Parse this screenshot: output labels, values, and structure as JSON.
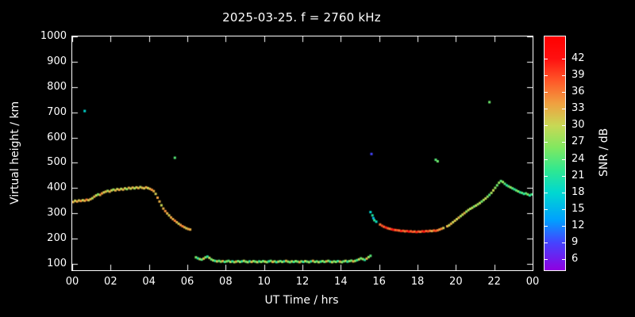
{
  "title": "2025-03-25. f = 2760 kHz",
  "chart_data": {
    "type": "scatter",
    "title": "2025-03-25. f = 2760 kHz",
    "xlabel": "UT Time / hrs",
    "ylabel": "Virtual height / km",
    "colorbar_label": "SNR / dB",
    "xlim": [
      0,
      24
    ],
    "ylim": [
      75,
      1000
    ],
    "grid": false,
    "marker_size": 3,
    "colors": {
      "background": "#000000",
      "frame": "#ffffff",
      "text": "#ffffff"
    },
    "x_ticks": [
      {
        "value": 0,
        "label": "00"
      },
      {
        "value": 2,
        "label": "02"
      },
      {
        "value": 4,
        "label": "04"
      },
      {
        "value": 6,
        "label": "06"
      },
      {
        "value": 8,
        "label": "08"
      },
      {
        "value": 10,
        "label": "10"
      },
      {
        "value": 12,
        "label": "12"
      },
      {
        "value": 14,
        "label": "14"
      },
      {
        "value": 16,
        "label": "16"
      },
      {
        "value": 18,
        "label": "18"
      },
      {
        "value": 20,
        "label": "20"
      },
      {
        "value": 22,
        "label": "22"
      },
      {
        "value": 24,
        "label": "00"
      }
    ],
    "y_ticks": [
      {
        "value": 100,
        "label": "100"
      },
      {
        "value": 200,
        "label": "200"
      },
      {
        "value": 300,
        "label": "300"
      },
      {
        "value": 400,
        "label": "400"
      },
      {
        "value": 500,
        "label": "500"
      },
      {
        "value": 600,
        "label": "600"
      },
      {
        "value": 700,
        "label": "700"
      },
      {
        "value": 800,
        "label": "800"
      },
      {
        "value": 900,
        "label": "900"
      },
      {
        "value": 1000,
        "label": "1000"
      }
    ],
    "colorbar": {
      "min": 4,
      "max": 46,
      "tick_values": [
        42,
        39,
        36,
        33,
        30,
        27,
        24,
        21,
        18,
        15,
        12,
        9,
        6
      ],
      "stops": [
        [
          4,
          "#9000e0"
        ],
        [
          9,
          "#4444ff"
        ],
        [
          13,
          "#00a0ff"
        ],
        [
          18,
          "#00d8d0"
        ],
        [
          22,
          "#30e890"
        ],
        [
          26,
          "#80e860"
        ],
        [
          30,
          "#c8d855"
        ],
        [
          34,
          "#f0a040"
        ],
        [
          38,
          "#ff5828"
        ],
        [
          42,
          "#ff1010"
        ],
        [
          46,
          "#ff0000"
        ]
      ]
    },
    "points": [
      [
        0.05,
        345,
        33
      ],
      [
        0.15,
        350,
        30
      ],
      [
        0.25,
        347,
        34
      ],
      [
        0.35,
        351,
        31
      ],
      [
        0.45,
        349,
        35
      ],
      [
        0.55,
        352,
        30
      ],
      [
        0.65,
        705,
        18
      ],
      [
        0.65,
        350,
        33
      ],
      [
        0.75,
        354,
        36
      ],
      [
        0.85,
        352,
        31
      ],
      [
        0.95,
        356,
        33
      ],
      [
        1.05,
        360,
        29
      ],
      [
        1.15,
        366,
        33
      ],
      [
        1.25,
        371,
        30
      ],
      [
        1.35,
        375,
        26
      ],
      [
        1.45,
        373,
        33
      ],
      [
        1.55,
        379,
        35
      ],
      [
        1.65,
        383,
        30
      ],
      [
        1.75,
        386,
        33
      ],
      [
        1.85,
        389,
        28
      ],
      [
        1.95,
        386,
        33
      ],
      [
        2.05,
        391,
        31
      ],
      [
        2.15,
        394,
        27
      ],
      [
        2.25,
        391,
        33
      ],
      [
        2.35,
        396,
        30
      ],
      [
        2.45,
        393,
        34
      ],
      [
        2.55,
        397,
        29
      ],
      [
        2.65,
        394,
        33
      ],
      [
        2.75,
        399,
        31
      ],
      [
        2.85,
        396,
        27
      ],
      [
        2.95,
        401,
        33
      ],
      [
        3.05,
        398,
        30
      ],
      [
        3.15,
        402,
        33
      ],
      [
        3.25,
        399,
        28
      ],
      [
        3.35,
        403,
        31
      ],
      [
        3.45,
        400,
        33
      ],
      [
        3.55,
        404,
        29
      ],
      [
        3.65,
        401,
        33
      ],
      [
        3.75,
        399,
        31
      ],
      [
        3.85,
        403,
        34
      ],
      [
        3.95,
        400,
        30
      ],
      [
        4.05,
        397,
        33
      ],
      [
        4.15,
        393,
        35
      ],
      [
        4.25,
        388,
        33
      ],
      [
        4.35,
        377,
        31
      ],
      [
        4.45,
        362,
        34
      ],
      [
        4.55,
        347,
        33
      ],
      [
        4.65,
        332,
        30
      ],
      [
        4.75,
        319,
        33
      ],
      [
        4.85,
        309,
        35
      ],
      [
        4.95,
        300,
        33
      ],
      [
        5.05,
        292,
        31
      ],
      [
        5.15,
        284,
        34
      ],
      [
        5.25,
        277,
        33
      ],
      [
        5.35,
        520,
        24
      ],
      [
        5.35,
        271,
        36
      ],
      [
        5.45,
        265,
        33
      ],
      [
        5.55,
        259,
        31
      ],
      [
        5.65,
        254,
        34
      ],
      [
        5.75,
        249,
        36
      ],
      [
        5.85,
        245,
        33
      ],
      [
        5.95,
        241,
        31
      ],
      [
        6.05,
        238,
        34
      ],
      [
        6.15,
        236,
        33
      ],
      [
        6.45,
        126,
        26
      ],
      [
        6.55,
        122,
        21
      ],
      [
        6.65,
        119,
        29
      ],
      [
        6.75,
        117,
        24
      ],
      [
        6.85,
        121,
        32
      ],
      [
        6.95,
        126,
        26
      ],
      [
        7.05,
        129,
        21
      ],
      [
        7.15,
        124,
        30
      ],
      [
        7.25,
        118,
        25
      ],
      [
        7.35,
        114,
        28
      ],
      [
        7.45,
        112,
        21
      ],
      [
        7.55,
        110,
        31
      ],
      [
        7.65,
        112,
        24
      ],
      [
        7.75,
        109,
        27
      ],
      [
        7.85,
        111,
        33
      ],
      [
        7.95,
        108,
        22
      ],
      [
        8.05,
        110,
        27
      ],
      [
        8.15,
        112,
        24
      ],
      [
        8.25,
        108,
        30
      ],
      [
        8.35,
        110,
        21
      ],
      [
        8.45,
        107,
        27
      ],
      [
        8.55,
        109,
        33
      ],
      [
        8.65,
        111,
        24
      ],
      [
        8.75,
        108,
        28
      ],
      [
        8.85,
        110,
        21
      ],
      [
        8.95,
        112,
        30
      ],
      [
        9.05,
        109,
        25
      ],
      [
        9.15,
        107,
        28
      ],
      [
        9.25,
        110,
        21
      ],
      [
        9.35,
        108,
        33
      ],
      [
        9.45,
        111,
        27
      ],
      [
        9.55,
        109,
        24
      ],
      [
        9.65,
        107,
        30
      ],
      [
        9.75,
        110,
        22
      ],
      [
        9.85,
        108,
        27
      ],
      [
        9.95,
        111,
        24
      ],
      [
        10.05,
        109,
        30
      ],
      [
        10.15,
        107,
        27
      ],
      [
        10.25,
        110,
        21
      ],
      [
        10.35,
        112,
        25
      ],
      [
        10.45,
        108,
        33
      ],
      [
        10.55,
        110,
        27
      ],
      [
        10.65,
        107,
        21
      ],
      [
        10.75,
        109,
        30
      ],
      [
        10.85,
        111,
        24
      ],
      [
        10.95,
        108,
        28
      ],
      [
        11.05,
        110,
        21
      ],
      [
        11.15,
        112,
        33
      ],
      [
        11.25,
        109,
        27
      ],
      [
        11.35,
        107,
        24
      ],
      [
        11.45,
        110,
        30
      ],
      [
        11.55,
        108,
        22
      ],
      [
        11.65,
        111,
        27
      ],
      [
        11.75,
        109,
        24
      ],
      [
        11.85,
        107,
        33
      ],
      [
        11.95,
        110,
        27
      ],
      [
        12.05,
        108,
        21
      ],
      [
        12.15,
        111,
        30
      ],
      [
        12.25,
        109,
        24
      ],
      [
        12.35,
        107,
        28
      ],
      [
        12.45,
        110,
        21
      ],
      [
        12.55,
        112,
        33
      ],
      [
        12.65,
        108,
        27
      ],
      [
        12.75,
        110,
        24
      ],
      [
        12.85,
        107,
        30
      ],
      [
        12.95,
        109,
        22
      ],
      [
        13.05,
        111,
        27
      ],
      [
        13.15,
        108,
        24
      ],
      [
        13.25,
        110,
        33
      ],
      [
        13.35,
        112,
        27
      ],
      [
        13.45,
        109,
        21
      ],
      [
        13.55,
        107,
        30
      ],
      [
        13.65,
        110,
        25
      ],
      [
        13.75,
        108,
        27
      ],
      [
        13.85,
        111,
        21
      ],
      [
        13.95,
        109,
        33
      ],
      [
        14.05,
        107,
        27
      ],
      [
        14.15,
        110,
        24
      ],
      [
        14.25,
        112,
        30
      ],
      [
        14.35,
        109,
        21
      ],
      [
        14.45,
        111,
        27
      ],
      [
        14.55,
        113,
        25
      ],
      [
        14.65,
        110,
        33
      ],
      [
        14.75,
        112,
        27
      ],
      [
        14.85,
        115,
        22
      ],
      [
        14.95,
        118,
        30
      ],
      [
        15.05,
        122,
        25
      ],
      [
        15.15,
        119,
        27
      ],
      [
        15.25,
        116,
        21
      ],
      [
        15.35,
        121,
        33
      ],
      [
        15.45,
        127,
        27
      ],
      [
        15.55,
        132,
        24
      ],
      [
        15.55,
        305,
        18
      ],
      [
        15.6,
        535,
        9
      ],
      [
        15.65,
        292,
        21
      ],
      [
        15.7,
        281,
        15
      ],
      [
        15.75,
        273,
        22
      ],
      [
        15.85,
        267,
        19
      ],
      [
        16.05,
        256,
        36
      ],
      [
        16.15,
        251,
        39
      ],
      [
        16.25,
        247,
        37
      ],
      [
        16.35,
        244,
        41
      ],
      [
        16.45,
        241,
        38
      ],
      [
        16.55,
        239,
        36
      ],
      [
        16.65,
        237,
        40
      ],
      [
        16.75,
        235,
        42
      ],
      [
        16.85,
        234,
        37
      ],
      [
        16.95,
        233,
        39
      ],
      [
        17.05,
        232,
        36
      ],
      [
        17.15,
        230,
        41
      ],
      [
        17.25,
        231,
        38
      ],
      [
        17.35,
        229,
        36
      ],
      [
        17.45,
        230,
        39
      ],
      [
        17.55,
        228,
        42
      ],
      [
        17.65,
        229,
        37
      ],
      [
        17.75,
        227,
        39
      ],
      [
        17.85,
        228,
        36
      ],
      [
        17.95,
        226,
        41
      ],
      [
        18.05,
        228,
        38
      ],
      [
        18.15,
        227,
        36
      ],
      [
        18.25,
        229,
        39
      ],
      [
        18.35,
        228,
        42
      ],
      [
        18.45,
        230,
        37
      ],
      [
        18.55,
        229,
        39
      ],
      [
        18.65,
        231,
        36
      ],
      [
        18.75,
        230,
        33
      ],
      [
        18.85,
        232,
        37
      ],
      [
        18.95,
        231,
        39
      ],
      [
        18.95,
        512,
        24
      ],
      [
        19.05,
        506,
        25
      ],
      [
        19.05,
        233,
        36
      ],
      [
        19.15,
        236,
        34
      ],
      [
        19.25,
        239,
        36
      ],
      [
        19.35,
        242,
        31
      ],
      [
        19.55,
        249,
        33
      ],
      [
        19.65,
        253,
        30
      ],
      [
        19.75,
        259,
        33
      ],
      [
        19.85,
        265,
        30
      ],
      [
        19.95,
        271,
        32
      ],
      [
        20.05,
        277,
        30
      ],
      [
        20.15,
        283,
        33
      ],
      [
        20.25,
        289,
        28
      ],
      [
        20.35,
        295,
        30
      ],
      [
        20.45,
        301,
        33
      ],
      [
        20.55,
        307,
        27
      ],
      [
        20.65,
        313,
        30
      ],
      [
        20.75,
        318,
        28
      ],
      [
        20.85,
        322,
        30
      ],
      [
        20.95,
        327,
        25
      ],
      [
        21.05,
        331,
        30
      ],
      [
        21.15,
        336,
        27
      ],
      [
        21.25,
        341,
        30
      ],
      [
        21.35,
        347,
        25
      ],
      [
        21.45,
        353,
        28
      ],
      [
        21.55,
        359,
        30
      ],
      [
        21.65,
        366,
        27
      ],
      [
        21.75,
        373,
        24
      ],
      [
        21.75,
        740,
        25
      ],
      [
        21.85,
        381,
        28
      ],
      [
        21.95,
        391,
        30
      ],
      [
        22.05,
        401,
        27
      ],
      [
        22.15,
        411,
        25
      ],
      [
        22.25,
        421,
        27
      ],
      [
        22.35,
        428,
        24
      ],
      [
        22.45,
        424,
        27
      ],
      [
        22.55,
        417,
        24
      ],
      [
        22.65,
        411,
        21
      ],
      [
        22.75,
        407,
        24
      ],
      [
        22.85,
        403,
        27
      ],
      [
        22.95,
        399,
        24
      ],
      [
        23.05,
        395,
        21
      ],
      [
        23.15,
        391,
        24
      ],
      [
        23.25,
        387,
        26
      ],
      [
        23.35,
        383,
        21
      ],
      [
        23.45,
        381,
        24
      ],
      [
        23.55,
        377,
        21
      ],
      [
        23.65,
        379,
        24
      ],
      [
        23.75,
        375,
        26
      ],
      [
        23.85,
        371,
        21
      ],
      [
        23.95,
        375,
        23
      ]
    ]
  }
}
